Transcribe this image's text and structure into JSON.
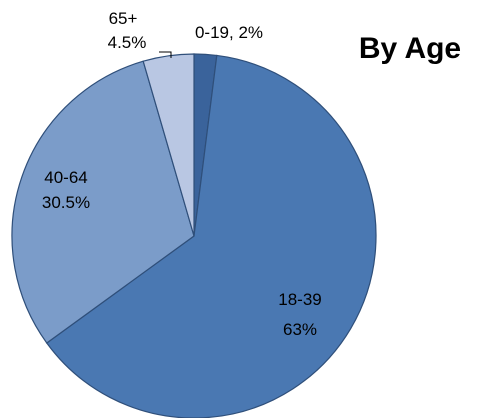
{
  "chart_data": {
    "type": "pie",
    "title": "By Age",
    "slices": [
      {
        "category": "0-19",
        "value": 2,
        "label_line1": "0-19, 2%",
        "label_line2": "",
        "color": "#3a639b"
      },
      {
        "category": "18-39",
        "value": 63,
        "label_line1": "18-39",
        "label_line2": "63%",
        "color": "#4a78b2"
      },
      {
        "category": "40-64",
        "value": 30.5,
        "label_line1": "40-64",
        "label_line2": "30.5%",
        "color": "#7b9cc9"
      },
      {
        "category": "65+",
        "value": 4.5,
        "label_line1": "65+",
        "label_line2": "4.5%",
        "color": "#b9c7e3"
      }
    ]
  }
}
